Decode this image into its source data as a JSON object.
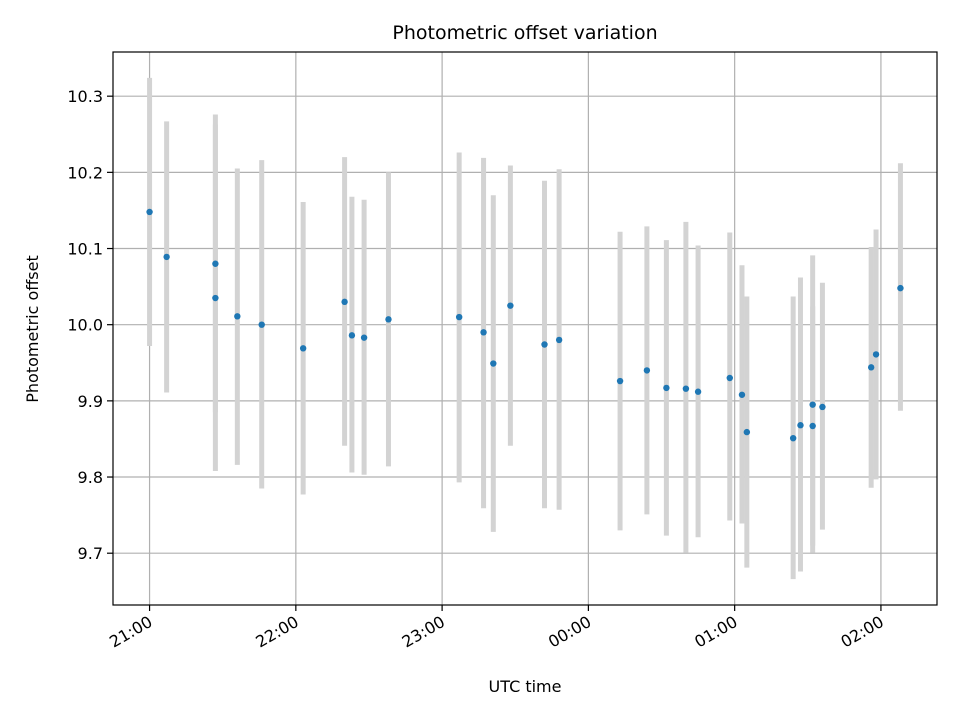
{
  "chart_data": {
    "type": "scatter",
    "title": "Photometric offset variation",
    "xlabel": "UTC time",
    "ylabel": "Photometric offset",
    "x_axis": "time",
    "xlim": [
      "20:45",
      "02:23"
    ],
    "ylim": [
      9.632,
      10.358
    ],
    "x_ticks": [
      "21:00",
      "22:00",
      "23:00",
      "00:00",
      "01:00",
      "02:00"
    ],
    "y_ticks": [
      9.7,
      9.8,
      9.9,
      10.0,
      10.1,
      10.2,
      10.3
    ],
    "grid": true,
    "legend": "none",
    "colors": {
      "points": "#1f77b4",
      "errorbars": "#d3d3d3",
      "grid": "#b0b0b0"
    },
    "points": [
      {
        "t": "21:00",
        "y": 10.148,
        "lo": 9.972,
        "hi": 10.324
      },
      {
        "t": "21:07",
        "y": 10.089,
        "lo": 9.911,
        "hi": 10.267
      },
      {
        "t": "21:27",
        "y": 10.08,
        "lo": 9.885,
        "hi": 10.276
      },
      {
        "t": "21:27",
        "y": 10.035,
        "lo": 9.808,
        "hi": 10.263
      },
      {
        "t": "21:36",
        "y": 10.011,
        "lo": 9.816,
        "hi": 10.205
      },
      {
        "t": "21:46",
        "y": 10.0,
        "lo": 9.785,
        "hi": 10.216
      },
      {
        "t": "22:03",
        "y": 9.969,
        "lo": 9.777,
        "hi": 10.161
      },
      {
        "t": "22:20",
        "y": 10.03,
        "lo": 9.841,
        "hi": 10.22
      },
      {
        "t": "22:23",
        "y": 9.986,
        "lo": 9.806,
        "hi": 10.168
      },
      {
        "t": "22:28",
        "y": 9.983,
        "lo": 9.803,
        "hi": 10.164
      },
      {
        "t": "22:38",
        "y": 10.007,
        "lo": 9.814,
        "hi": 10.2
      },
      {
        "t": "23:07",
        "y": 10.01,
        "lo": 9.793,
        "hi": 10.226
      },
      {
        "t": "23:17",
        "y": 9.99,
        "lo": 9.759,
        "hi": 10.219
      },
      {
        "t": "23:21",
        "y": 9.949,
        "lo": 9.728,
        "hi": 10.17
      },
      {
        "t": "23:28",
        "y": 10.025,
        "lo": 9.841,
        "hi": 10.209
      },
      {
        "t": "23:42",
        "y": 9.974,
        "lo": 9.759,
        "hi": 10.189
      },
      {
        "t": "23:48",
        "y": 9.98,
        "lo": 9.757,
        "hi": 10.204
      },
      {
        "t": "00:13",
        "y": 9.926,
        "lo": 9.73,
        "hi": 10.122
      },
      {
        "t": "00:24",
        "y": 9.94,
        "lo": 9.751,
        "hi": 10.129
      },
      {
        "t": "00:32",
        "y": 9.917,
        "lo": 9.723,
        "hi": 10.111
      },
      {
        "t": "00:40",
        "y": 9.916,
        "lo": 9.701,
        "hi": 10.135
      },
      {
        "t": "00:45",
        "y": 9.912,
        "lo": 9.721,
        "hi": 10.104
      },
      {
        "t": "00:58",
        "y": 9.93,
        "lo": 9.743,
        "hi": 10.121
      },
      {
        "t": "01:03",
        "y": 9.908,
        "lo": 9.739,
        "hi": 10.078
      },
      {
        "t": "01:05",
        "y": 9.859,
        "lo": 9.681,
        "hi": 10.037
      },
      {
        "t": "01:24",
        "y": 9.851,
        "lo": 9.666,
        "hi": 10.037
      },
      {
        "t": "01:27",
        "y": 9.868,
        "lo": 9.676,
        "hi": 10.062
      },
      {
        "t": "01:32",
        "y": 9.867,
        "lo": 9.71,
        "hi": 10.024
      },
      {
        "t": "01:32",
        "y": 9.895,
        "lo": 9.701,
        "hi": 10.091
      },
      {
        "t": "01:36",
        "y": 9.892,
        "lo": 9.731,
        "hi": 10.055
      },
      {
        "t": "01:56",
        "y": 9.944,
        "lo": 9.786,
        "hi": 10.102
      },
      {
        "t": "01:58",
        "y": 9.961,
        "lo": 9.797,
        "hi": 10.125
      },
      {
        "t": "02:08",
        "y": 10.048,
        "lo": 9.887,
        "hi": 10.212
      }
    ]
  }
}
